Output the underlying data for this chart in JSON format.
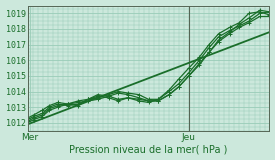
{
  "xlabel": "Pression niveau de la mer( hPa )",
  "bg_color": "#cce8dc",
  "grid_color": "#99ccb8",
  "line_color": "#1a6e2a",
  "text_color": "#1a6e2a",
  "vline_color": "#556655",
  "ylim": [
    1011.5,
    1019.5
  ],
  "xlim": [
    0.0,
    2.0
  ],
  "xtick_labels": [
    "Mer",
    "Jeu"
  ],
  "xtick_pos": [
    0.02,
    1.333
  ],
  "ytick_vals": [
    1012,
    1013,
    1014,
    1015,
    1016,
    1017,
    1018,
    1019
  ],
  "vline_x": 1.333,
  "series": [
    {
      "x": [
        0.0,
        2.0
      ],
      "y": [
        1011.9,
        1017.8
      ],
      "marker": false,
      "lw": 1.3
    },
    {
      "x": [
        0.0,
        0.05,
        0.12,
        0.18,
        0.25,
        0.33,
        0.42,
        0.5,
        0.58,
        0.67,
        0.75,
        0.83,
        0.92,
        1.0,
        1.08,
        1.17,
        1.25,
        1.333,
        1.42,
        1.5,
        1.58,
        1.67,
        1.75,
        1.83,
        1.92,
        2.0
      ],
      "y": [
        1012.1,
        1012.3,
        1012.5,
        1012.9,
        1013.1,
        1013.2,
        1013.4,
        1013.5,
        1013.6,
        1013.8,
        1014.0,
        1013.9,
        1013.8,
        1013.5,
        1013.5,
        1014.0,
        1014.5,
        1015.2,
        1016.0,
        1016.8,
        1017.5,
        1017.9,
        1018.2,
        1018.5,
        1019.0,
        1019.1
      ],
      "marker": true,
      "lw": 0.9
    },
    {
      "x": [
        0.0,
        0.05,
        0.12,
        0.18,
        0.25,
        0.33,
        0.42,
        0.5,
        0.58,
        0.67,
        0.75,
        0.83,
        0.92,
        1.0,
        1.08,
        1.17,
        1.25,
        1.333,
        1.42,
        1.5,
        1.58,
        1.67,
        1.75,
        1.83,
        1.92,
        2.0
      ],
      "y": [
        1012.0,
        1012.2,
        1012.4,
        1012.8,
        1013.0,
        1013.2,
        1013.3,
        1013.4,
        1013.5,
        1013.7,
        1013.9,
        1013.8,
        1013.6,
        1013.4,
        1013.4,
        1013.8,
        1014.3,
        1015.0,
        1015.7,
        1016.5,
        1017.2,
        1017.7,
        1018.1,
        1018.4,
        1018.8,
        1018.8
      ],
      "marker": true,
      "lw": 0.9
    },
    {
      "x": [
        0.0,
        0.05,
        0.12,
        0.18,
        0.25,
        0.33,
        0.42,
        0.5,
        0.58,
        0.67,
        0.75,
        0.83,
        0.92,
        1.0,
        1.08,
        1.17,
        1.25,
        1.333,
        1.42,
        1.5,
        1.58,
        1.67,
        1.75,
        1.83,
        1.92,
        2.0
      ],
      "y": [
        1012.2,
        1012.4,
        1012.6,
        1013.0,
        1013.2,
        1013.1,
        1013.2,
        1013.5,
        1013.7,
        1013.6,
        1013.4,
        1013.6,
        1013.5,
        1013.4,
        1013.4,
        1013.8,
        1014.3,
        1015.0,
        1015.8,
        1016.5,
        1017.3,
        1017.8,
        1018.3,
        1018.7,
        1019.2,
        1019.1
      ],
      "marker": true,
      "lw": 0.9
    },
    {
      "x": [
        0.0,
        0.05,
        0.12,
        0.18,
        0.25,
        0.33,
        0.42,
        0.5,
        0.58,
        0.67,
        0.75,
        0.83,
        0.92,
        1.0,
        1.08,
        1.17,
        1.25,
        1.333,
        1.42,
        1.5,
        1.58,
        1.67,
        1.75,
        1.83,
        1.92,
        2.0
      ],
      "y": [
        1012.3,
        1012.5,
        1012.8,
        1013.1,
        1013.3,
        1013.2,
        1013.1,
        1013.5,
        1013.8,
        1013.7,
        1013.5,
        1013.6,
        1013.4,
        1013.3,
        1013.5,
        1014.1,
        1014.8,
        1015.5,
        1016.2,
        1017.0,
        1017.7,
        1018.1,
        1018.4,
        1019.0,
        1019.1,
        1018.9
      ],
      "marker": true,
      "lw": 0.9
    }
  ]
}
